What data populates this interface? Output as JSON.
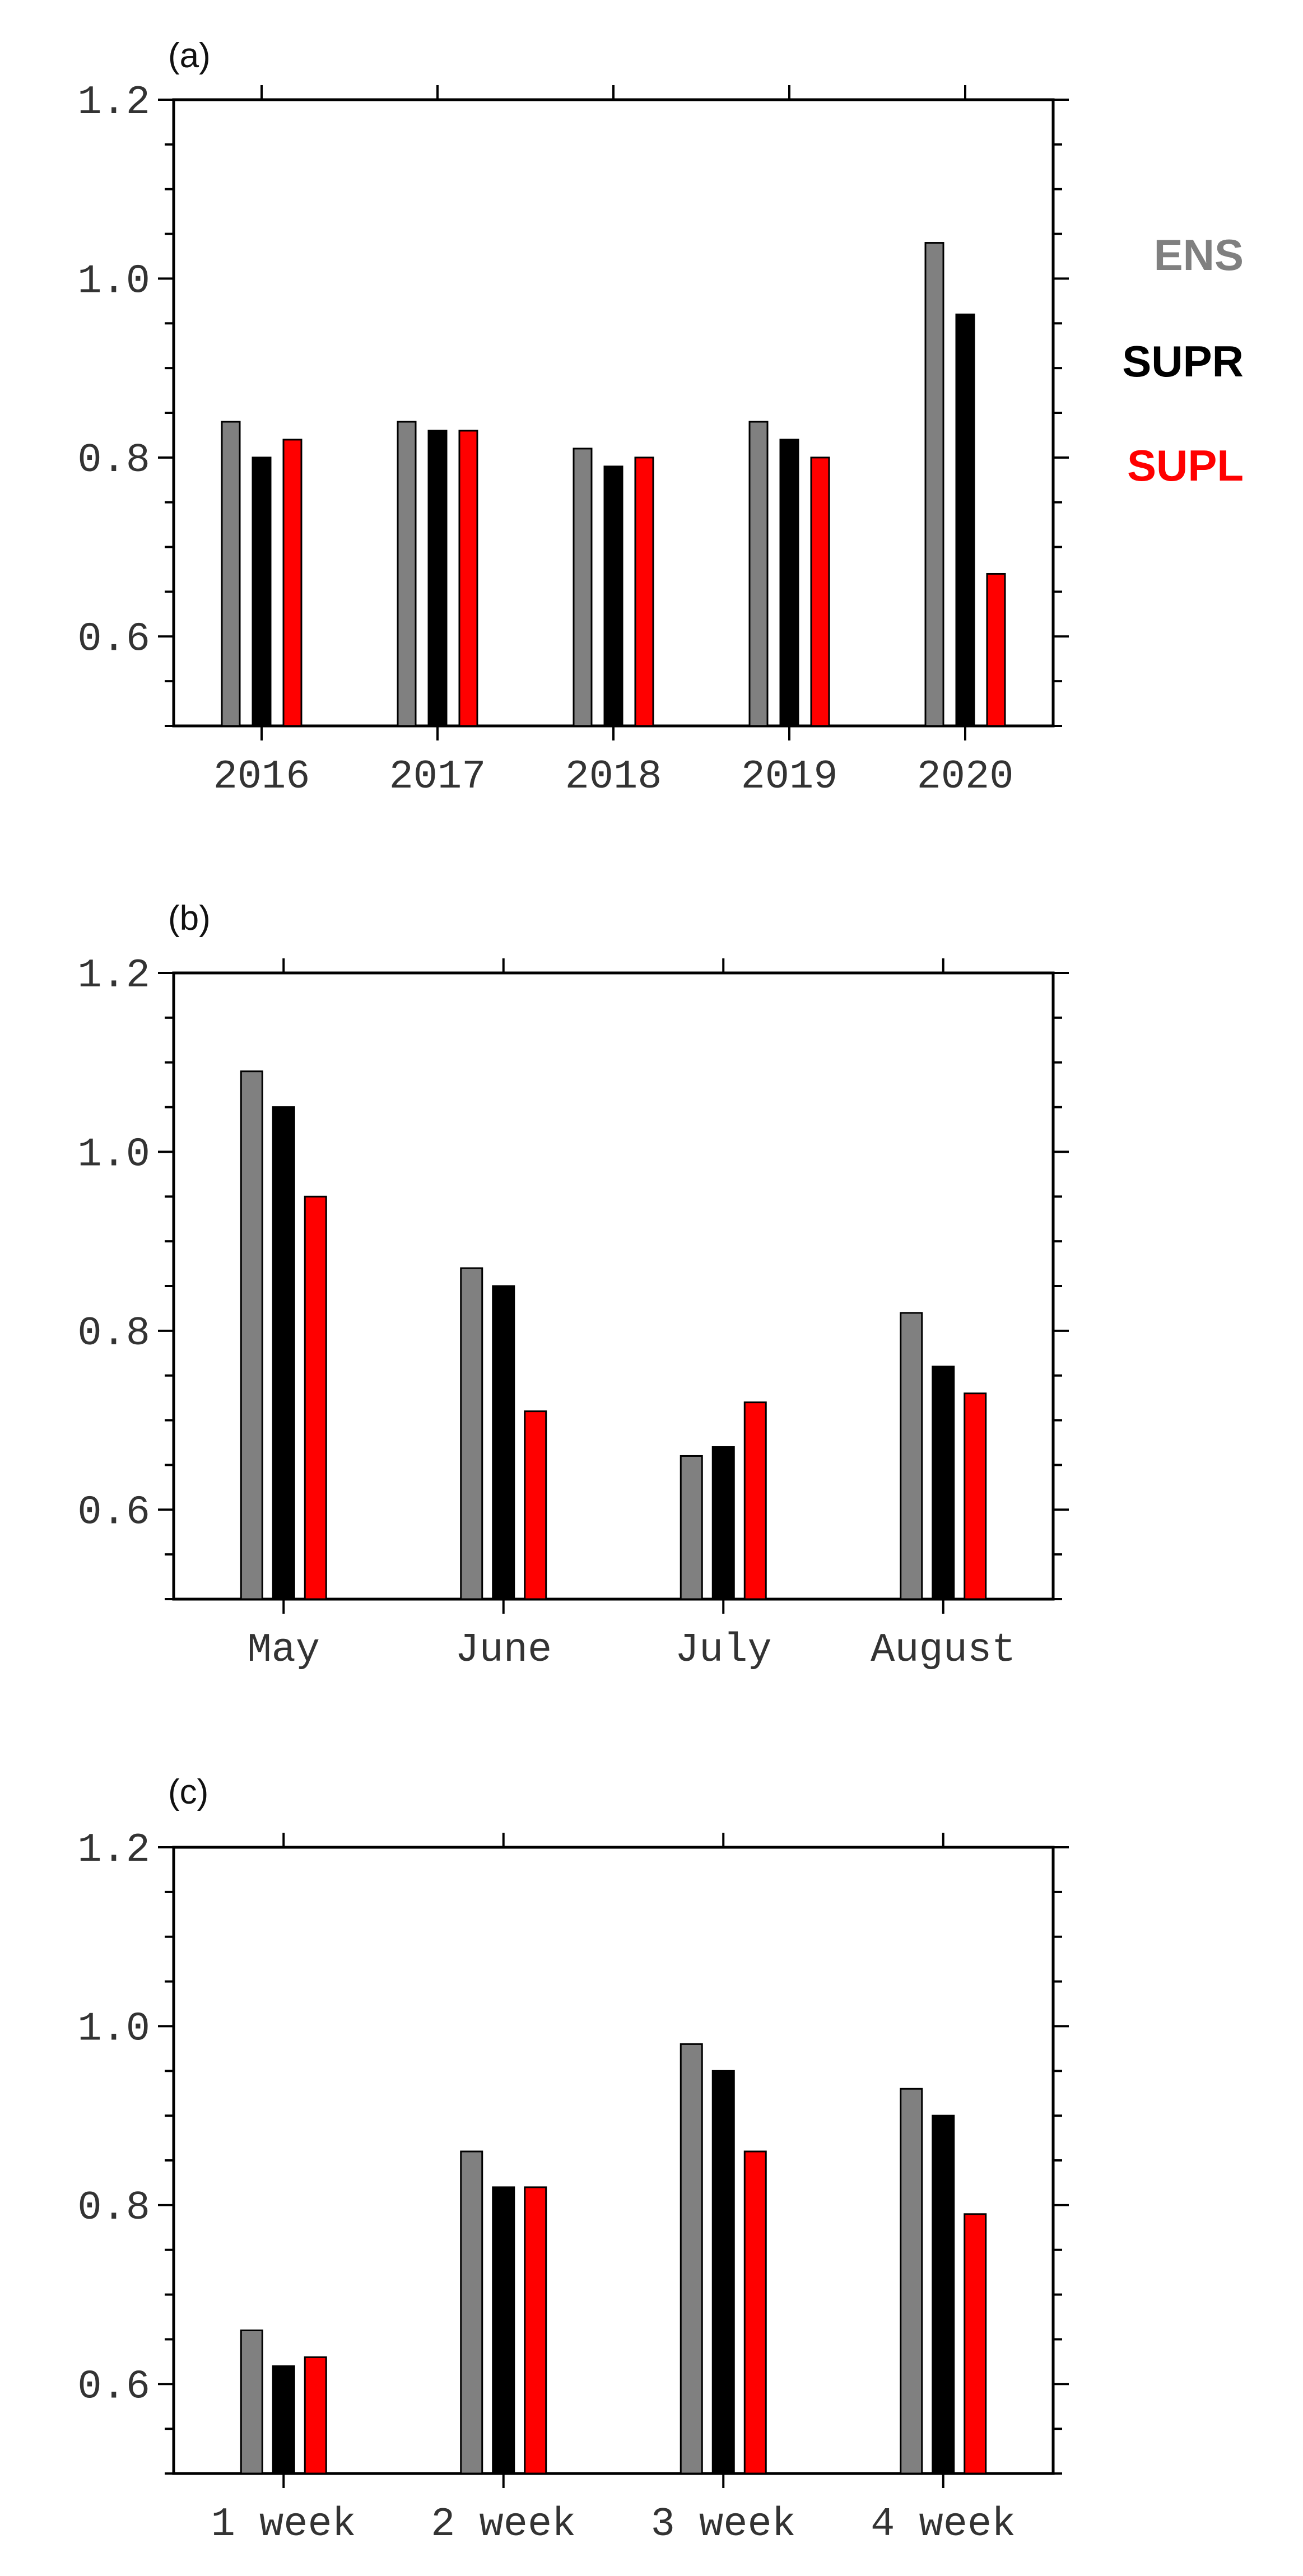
{
  "legend": {
    "items": [
      {
        "name": "ENS",
        "color": "#808080"
      },
      {
        "name": "SUPR",
        "color": "#000000"
      },
      {
        "name": "SUPL",
        "color": "#ff0000"
      }
    ]
  },
  "chart_data": [
    {
      "type": "bar",
      "panel_label": "(a)",
      "categories": [
        "2016",
        "2017",
        "2018",
        "2019",
        "2020"
      ],
      "series": [
        {
          "name": "ENS",
          "color": "#808080",
          "values": [
            0.84,
            0.84,
            0.81,
            0.84,
            1.04
          ]
        },
        {
          "name": "SUPR",
          "color": "#000000",
          "values": [
            0.8,
            0.83,
            0.79,
            0.82,
            0.96
          ]
        },
        {
          "name": "SUPL",
          "color": "#ff0000",
          "values": [
            0.82,
            0.83,
            0.8,
            0.8,
            0.67
          ]
        }
      ],
      "ylim": [
        0.5,
        1.2
      ],
      "yticks": [
        "0.6",
        "0.8",
        "1.0",
        "1.2"
      ],
      "title": "",
      "xlabel": "",
      "ylabel": ""
    },
    {
      "type": "bar",
      "panel_label": "(b)",
      "categories": [
        "May",
        "June",
        "July",
        "August"
      ],
      "series": [
        {
          "name": "ENS",
          "color": "#808080",
          "values": [
            1.09,
            0.87,
            0.66,
            0.82
          ]
        },
        {
          "name": "SUPR",
          "color": "#000000",
          "values": [
            1.05,
            0.85,
            0.67,
            0.76
          ]
        },
        {
          "name": "SUPL",
          "color": "#ff0000",
          "values": [
            0.95,
            0.71,
            0.72,
            0.73
          ]
        }
      ],
      "ylim": [
        0.5,
        1.2
      ],
      "yticks": [
        "0.6",
        "0.8",
        "1.0",
        "1.2"
      ],
      "title": "",
      "xlabel": "",
      "ylabel": ""
    },
    {
      "type": "bar",
      "panel_label": "(c)",
      "categories": [
        "1 week",
        "2 week",
        "3 week",
        "4 week"
      ],
      "series": [
        {
          "name": "ENS",
          "color": "#808080",
          "values": [
            0.66,
            0.86,
            0.98,
            0.93
          ]
        },
        {
          "name": "SUPR",
          "color": "#000000",
          "values": [
            0.62,
            0.82,
            0.95,
            0.9
          ]
        },
        {
          "name": "SUPL",
          "color": "#ff0000",
          "values": [
            0.63,
            0.82,
            0.86,
            0.79
          ]
        }
      ],
      "ylim": [
        0.5,
        1.2
      ],
      "yticks": [
        "0.6",
        "0.8",
        "1.0",
        "1.2"
      ],
      "title": "",
      "xlabel": "",
      "ylabel": ""
    }
  ]
}
